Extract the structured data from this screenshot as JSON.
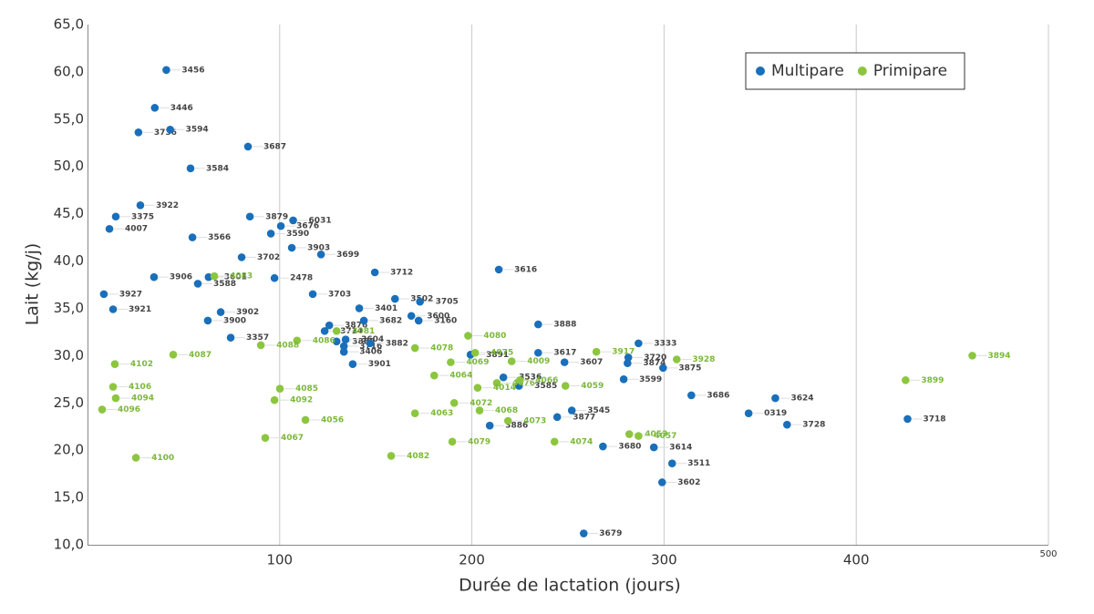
{
  "chart_data": {
    "type": "scatter",
    "x_label": "Durée de lactation (jours)",
    "y_label": "Lait (kg/j)",
    "xlim": [
      0,
      500
    ],
    "ylim": [
      10,
      65
    ],
    "xticks": [
      100,
      200,
      300,
      400,
      500
    ],
    "yticks": [
      {
        "value": 10,
        "label": "10,0"
      },
      {
        "value": 15,
        "label": "15,0"
      },
      {
        "value": 20,
        "label": "20,0"
      },
      {
        "value": 25,
        "label": "25,0"
      },
      {
        "value": 30,
        "label": "30,0"
      },
      {
        "value": 35,
        "label": "35,0"
      },
      {
        "value": 40,
        "label": "40,0"
      },
      {
        "value": 45,
        "label": "45,0"
      },
      {
        "value": 50,
        "label": "50,0"
      },
      {
        "value": 55,
        "label": "55,0"
      },
      {
        "value": 60,
        "label": "60,0"
      },
      {
        "value": 65,
        "label": "65,0"
      }
    ],
    "grid": "x",
    "legend": "upper right",
    "series": [
      {
        "name": "Multipare",
        "color": "#1a6fba",
        "label_color": "#444",
        "labels": [
          "3456",
          "3446",
          "3736",
          "3594",
          "3687",
          "3584",
          "3922",
          "3375",
          "4007",
          "3879",
          "6031",
          "3676",
          "3590",
          "3566",
          "3903",
          "3699",
          "3702",
          "3712",
          "3616",
          "3906",
          "3601",
          "3588",
          "2478",
          "3927",
          "3703",
          "3921",
          "3401",
          "3502",
          "3705",
          "3902",
          "3900",
          "3876",
          "3714",
          "3682",
          "3600",
          "3160",
          "3888",
          "3357",
          "3889",
          "3604",
          "3716",
          "3406",
          "3882",
          "3901",
          "3891",
          "3617",
          "3607",
          "3333",
          "3720",
          "3874",
          "3875",
          "3599",
          "3536",
          "3585",
          "3686",
          "3624",
          "3545",
          "3877",
          "0319",
          "3718",
          "3728",
          "3886",
          "3680",
          "3614",
          "3511",
          "3602",
          "3679"
        ],
        "x": [
          41,
          35,
          26.5,
          43,
          83.5,
          53.6,
          27.5,
          14.7,
          11.4,
          84.5,
          107,
          100.6,
          95.4,
          54.6,
          106.3,
          121.5,
          80.2,
          149.5,
          214,
          34.6,
          63,
          57.4,
          97.3,
          8.5,
          117.2,
          13.3,
          141.4,
          160,
          173,
          69.3,
          62.6,
          125.8,
          123.4,
          143.8,
          168.5,
          172.3,
          234.5,
          74.5,
          129.6,
          134.3,
          133.4,
          133.4,
          147,
          138,
          199.3,
          234.5,
          248.2,
          286.7,
          281.4,
          281,
          299.5,
          279,
          216.4,
          224.5,
          314.2,
          357.9,
          252,
          244.4,
          344,
          426.7,
          364,
          209.3,
          268.2,
          294.7,
          304.2,
          299,
          258.2
        ],
        "values": [
          60.2,
          56.2,
          53.6,
          53.9,
          52.1,
          49.8,
          45.9,
          44.7,
          43.4,
          44.7,
          44.3,
          43.7,
          42.9,
          42.5,
          41.4,
          40.7,
          40.4,
          38.8,
          39.1,
          38.3,
          38.3,
          37.6,
          38.2,
          36.5,
          36.5,
          34.9,
          35,
          36,
          35.7,
          34.6,
          33.7,
          33.2,
          32.6,
          33.7,
          34.2,
          33.7,
          33.3,
          31.9,
          31.5,
          31.7,
          31,
          30.4,
          31.3,
          29.1,
          30.1,
          30.3,
          29.3,
          31.3,
          29.8,
          29.2,
          28.7,
          27.5,
          27.7,
          26.8,
          25.8,
          25.5,
          24.2,
          23.5,
          23.9,
          23.3,
          22.7,
          22.6,
          20.4,
          20.3,
          18.6,
          16.6,
          11.2
        ]
      },
      {
        "name": "Primipare",
        "color": "#8cc63f",
        "label_color": "#7cb83a",
        "labels": [
          "4083",
          "4081",
          "4086",
          "4088",
          "4087",
          "4102",
          "4078",
          "4069",
          "4075",
          "4080",
          "4009",
          "4076",
          "4064",
          "4014",
          "4066",
          "4059",
          "3917",
          "3928",
          "3899",
          "3894",
          "4085",
          "4092",
          "4106",
          "4096",
          "4094",
          "4100",
          "4067",
          "4056",
          "4063",
          "4072",
          "4068",
          "4073",
          "4079",
          "4082",
          "4074",
          "4053",
          "4057"
        ],
        "x": [
          66,
          129.6,
          109,
          90.2,
          44.6,
          14.2,
          170.4,
          189,
          201.7,
          198,
          220.7,
          213,
          180.4,
          203,
          225,
          248.7,
          264.8,
          306.6,
          425.7,
          460.4,
          100.1,
          97.3,
          13.3,
          7.6,
          14.7,
          25.2,
          92.5,
          113.4,
          170.4,
          190.8,
          204,
          218.8,
          189.8,
          158,
          243,
          281.9,
          286.7
        ],
        "values": [
          38.4,
          32.6,
          31.6,
          31.1,
          30.1,
          29.1,
          30.8,
          29.3,
          30.3,
          32.1,
          29.4,
          27.1,
          27.9,
          26.6,
          27.4,
          26.8,
          30.4,
          29.6,
          27.4,
          30,
          26.5,
          25.3,
          26.7,
          24.3,
          25.5,
          19.2,
          21.3,
          23.2,
          23.9,
          25,
          24.2,
          23.1,
          20.9,
          19.4,
          20.9,
          21.7,
          21.5
        ]
      }
    ]
  }
}
